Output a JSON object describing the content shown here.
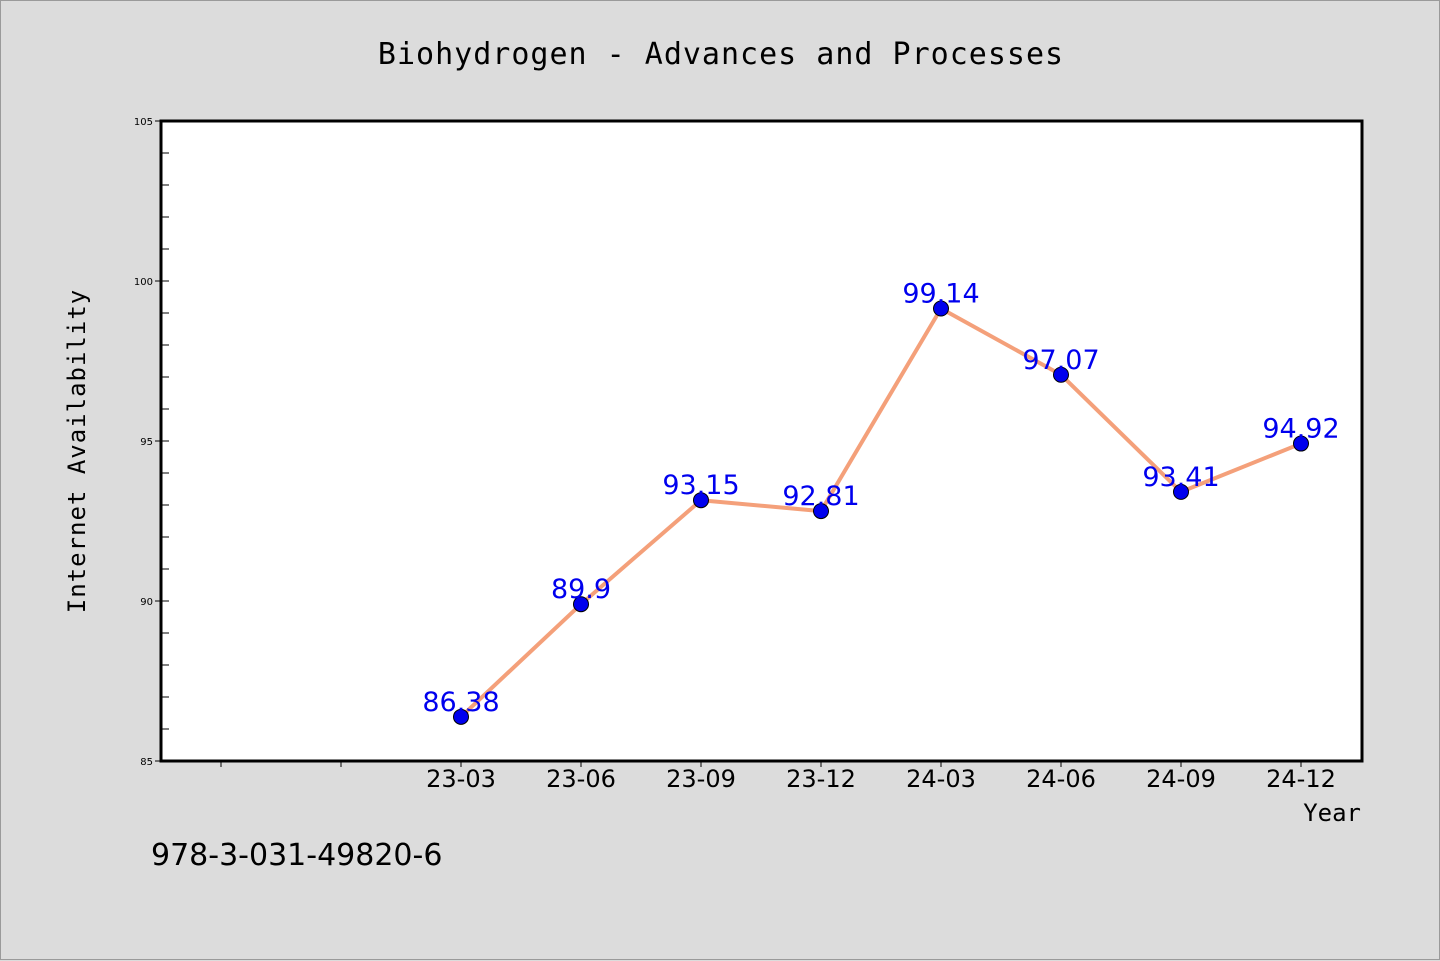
{
  "footnote": "978-3-031-49820-6",
  "colors": {
    "background": "#dcdcdc",
    "plot_background": "#ffffff",
    "line": "#f4a07a",
    "marker": "#0000ee",
    "data_label": "#0000ee"
  },
  "chart_data": {
    "type": "line",
    "title": "Biohydrogen - Advances and Processes",
    "xlabel": "Year",
    "ylabel": "Internet Availability",
    "ylim": [
      85,
      105
    ],
    "yticks": [
      85,
      90,
      95,
      100,
      105
    ],
    "categories": [
      "23-03",
      "23-06",
      "23-09",
      "23-12",
      "24-03",
      "24-06",
      "24-09",
      "24-12"
    ],
    "values": [
      86.38,
      89.9,
      93.15,
      92.81,
      99.14,
      97.07,
      93.41,
      94.92
    ],
    "data_labels": [
      "86.38",
      "89.9",
      "93.15",
      "92.81",
      "99.14",
      "97.07",
      "93.41",
      "94.92"
    ],
    "grid": false,
    "legend": "none"
  }
}
